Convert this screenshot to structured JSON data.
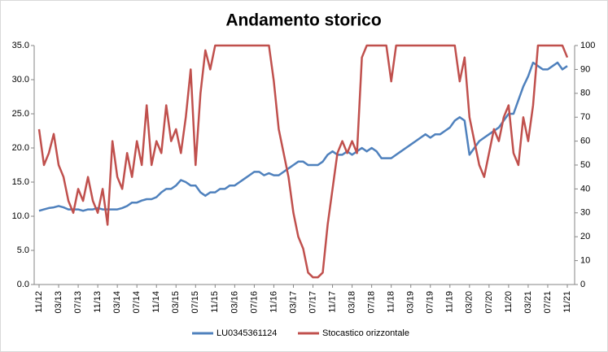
{
  "chart_data": {
    "type": "line",
    "title": "Andamento storico",
    "categories": [
      "11/12",
      null,
      null,
      null,
      "03/13",
      null,
      null,
      null,
      "07/13",
      null,
      null,
      null,
      "11/13",
      null,
      null,
      null,
      "03/14",
      null,
      null,
      null,
      "07/14",
      null,
      null,
      null,
      "11/14",
      null,
      null,
      null,
      "03/15",
      null,
      null,
      null,
      "07/15",
      null,
      null,
      null,
      "11/15",
      null,
      null,
      null,
      "03/16",
      null,
      null,
      null,
      "07/16",
      null,
      null,
      null,
      "11/16",
      null,
      null,
      null,
      "03/17",
      null,
      null,
      null,
      "07/17",
      null,
      null,
      null,
      "11/17",
      null,
      null,
      null,
      "03/18",
      null,
      null,
      null,
      "07/18",
      null,
      null,
      null,
      "11/18",
      null,
      null,
      null,
      "03/19",
      null,
      null,
      null,
      "07/19",
      null,
      null,
      null,
      "11/19",
      null,
      null,
      null,
      "03/20",
      null,
      null,
      null,
      "07/20",
      null,
      null,
      null,
      "11/20",
      null,
      null,
      null,
      "03/21",
      null,
      null,
      null,
      "07/21",
      null,
      null,
      null,
      "11/21"
    ],
    "series": [
      {
        "name": "LU0345361124",
        "color": "#4f81bd",
        "axis": "y",
        "values": [
          10.8,
          11.0,
          11.2,
          11.3,
          11.5,
          11.3,
          11.0,
          11.0,
          11.0,
          10.8,
          11.0,
          11.0,
          11.2,
          11.0,
          11.0,
          11.0,
          11.0,
          11.2,
          11.5,
          12.0,
          12.0,
          12.3,
          12.5,
          12.5,
          12.8,
          13.5,
          14.0,
          14.0,
          14.5,
          15.3,
          15.0,
          14.5,
          14.5,
          13.5,
          13.0,
          13.5,
          13.5,
          14.0,
          14.0,
          14.5,
          14.5,
          15.0,
          15.5,
          16.0,
          16.5,
          16.5,
          16.0,
          16.3,
          16.0,
          16.0,
          16.5,
          17.0,
          17.5,
          18.0,
          18.0,
          17.5,
          17.5,
          17.5,
          18.0,
          19.0,
          19.5,
          19.0,
          19.0,
          19.5,
          19.0,
          19.5,
          20.0,
          19.5,
          20.0,
          19.5,
          18.5,
          18.5,
          18.5,
          19.0,
          19.5,
          20.0,
          20.5,
          21.0,
          21.5,
          22.0,
          21.5,
          22.0,
          22.0,
          22.5,
          23.0,
          24.0,
          24.5,
          24.0,
          19.0,
          20.0,
          21.0,
          21.5,
          22.0,
          22.5,
          23.0,
          24.0,
          25.0,
          25.0,
          27.0,
          29.0,
          30.5,
          32.5,
          32.0,
          31.5,
          31.5,
          32.0,
          32.5,
          31.5,
          32.0
        ]
      },
      {
        "name": "Stocastico orizzontale",
        "color": "#c0504d",
        "axis": "y2",
        "values": [
          65,
          50,
          55,
          63,
          50,
          45,
          35,
          30,
          40,
          35,
          45,
          35,
          30,
          40,
          25,
          60,
          45,
          40,
          55,
          45,
          60,
          50,
          75,
          50,
          60,
          55,
          75,
          60,
          65,
          55,
          70,
          90,
          50,
          80,
          98,
          90,
          100,
          100,
          100,
          100,
          100,
          100,
          100,
          100,
          100,
          100,
          100,
          100,
          85,
          65,
          55,
          45,
          30,
          20,
          15,
          5,
          3,
          3,
          5,
          25,
          40,
          55,
          60,
          55,
          60,
          55,
          95,
          100,
          100,
          100,
          100,
          100,
          85,
          100,
          100,
          100,
          100,
          100,
          100,
          100,
          100,
          100,
          100,
          100,
          100,
          100,
          85,
          95,
          70,
          60,
          50,
          45,
          55,
          65,
          60,
          70,
          75,
          55,
          50,
          70,
          60,
          75,
          100,
          100,
          100,
          100,
          100,
          100,
          95
        ]
      }
    ],
    "ylim": [
      0,
      35
    ],
    "yticks": [
      {
        "value": 0,
        "label": "0.0"
      },
      {
        "value": 5,
        "label": "5.0"
      },
      {
        "value": 10,
        "label": "10.0"
      },
      {
        "value": 15,
        "label": "15.0"
      },
      {
        "value": 20,
        "label": "20.0"
      },
      {
        "value": 25,
        "label": "25.0"
      },
      {
        "value": 30,
        "label": "30.0"
      },
      {
        "value": 35,
        "label": "35.0"
      }
    ],
    "y2lim": [
      0,
      100
    ],
    "y2ticks": [
      0,
      10,
      20,
      30,
      40,
      50,
      60,
      70,
      80,
      90,
      100
    ],
    "grid": false,
    "legend": "bottom"
  }
}
